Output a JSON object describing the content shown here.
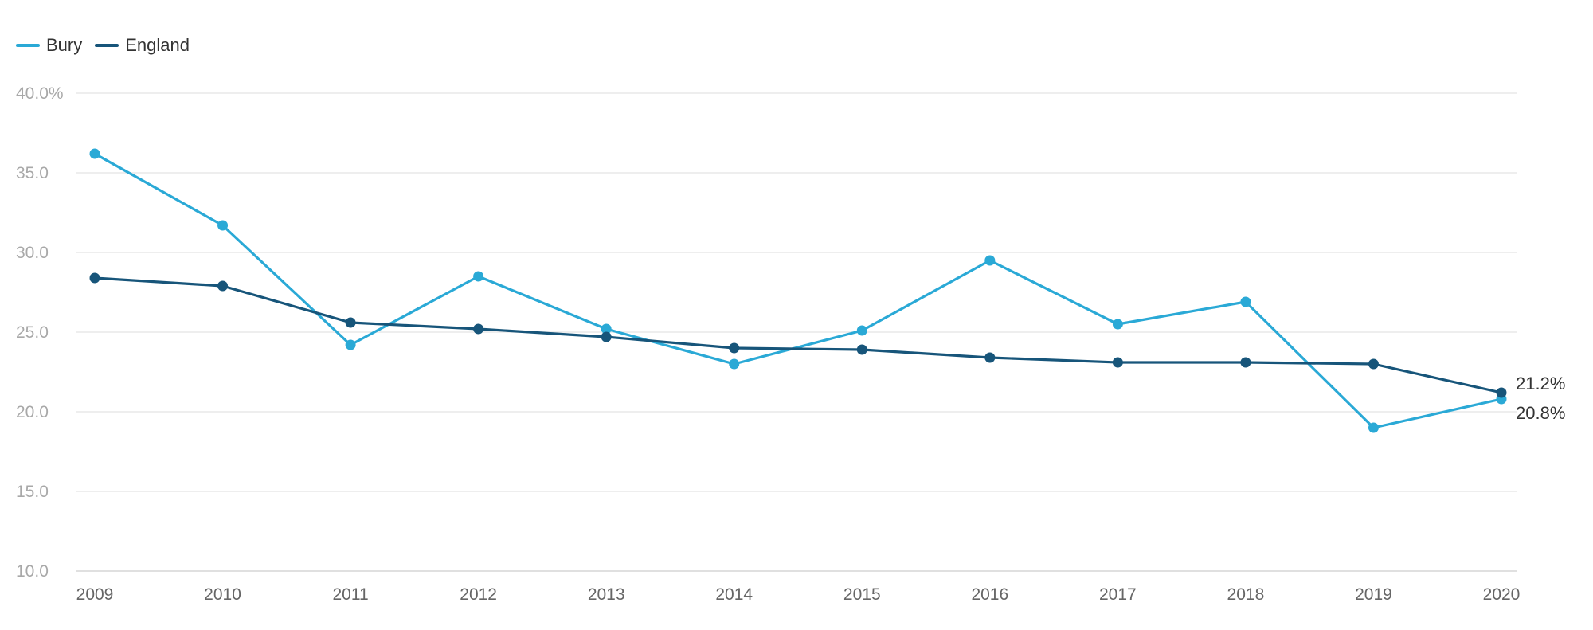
{
  "chart_data": {
    "type": "line",
    "title": "",
    "xlabel": "",
    "ylabel": "",
    "x": [
      "2009",
      "2010",
      "2011",
      "2012",
      "2013",
      "2014",
      "2015",
      "2016",
      "2017",
      "2018",
      "2019",
      "2020"
    ],
    "ylim": [
      10,
      40
    ],
    "yticks": [
      {
        "value": 40,
        "label": "40.0%"
      },
      {
        "value": 35,
        "label": "35.0"
      },
      {
        "value": 30,
        "label": "30.0"
      },
      {
        "value": 25,
        "label": "25.0"
      },
      {
        "value": 20,
        "label": "20.0"
      },
      {
        "value": 15,
        "label": "15.0"
      },
      {
        "value": 10,
        "label": "10.0"
      }
    ],
    "grid": true,
    "legend_position": "top-left",
    "series": [
      {
        "name": "Bury",
        "color": "#2aa9d6",
        "values": [
          36.2,
          31.7,
          24.2,
          28.5,
          25.2,
          23.0,
          25.1,
          29.5,
          25.5,
          26.9,
          19.0,
          20.8
        ],
        "end_label": "20.8%"
      },
      {
        "name": "England",
        "color": "#17557a",
        "values": [
          28.4,
          27.9,
          25.6,
          25.2,
          24.7,
          24.0,
          23.9,
          23.4,
          23.1,
          23.1,
          23.0,
          21.2
        ],
        "end_label": "21.2%"
      }
    ]
  }
}
